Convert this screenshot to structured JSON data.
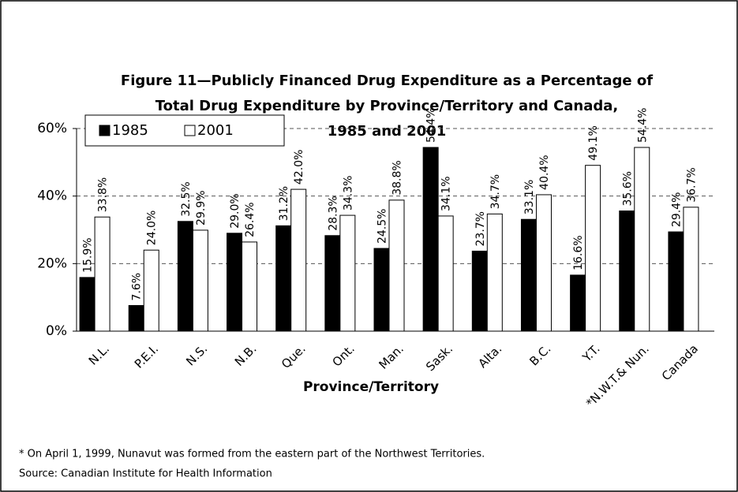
{
  "chart_data": {
    "type": "bar",
    "title": [
      "Figure 11—Publicly Financed Drug Expenditure as a Percentage of",
      "Total Drug Expenditure by Province/Territory and Canada,",
      "1985 and 2001"
    ],
    "x_label": "Province/Territory",
    "categories": [
      "N.L.",
      "P.E.I.",
      "N.S.",
      "N.B.",
      "Que.",
      "Ont.",
      "Man.",
      "Sask.",
      "Alta.",
      "B.C.",
      "Y.T.",
      "*N.W.T.& Nun.",
      "Canada"
    ],
    "series": [
      {
        "name": "1985",
        "color": "#000000",
        "values": [
          15.9,
          7.6,
          32.5,
          29.0,
          31.2,
          28.3,
          24.5,
          54.4,
          23.7,
          33.1,
          16.6,
          35.6,
          29.4
        ],
        "value_labels": [
          "15.9%",
          "7.6%",
          "32.5%",
          "29.0%",
          "31.2%",
          "28.3%",
          "24.5%",
          "54.4%",
          "23.7%",
          "33.1%",
          "16.6%",
          "35.6%",
          "29.4%"
        ]
      },
      {
        "name": "2001",
        "color": "#ffffff",
        "values": [
          33.8,
          24.0,
          29.9,
          26.4,
          42.0,
          34.3,
          38.8,
          34.1,
          34.7,
          40.4,
          49.1,
          54.4,
          36.7
        ],
        "value_labels": [
          "33.8%",
          "24.0%",
          "29.9%",
          "26.4%",
          "42.0%",
          "34.3%",
          "38.8%",
          "34.1%",
          "34.7%",
          "40.4%",
          "49.1%",
          "54.4%",
          "36.7%"
        ]
      }
    ],
    "ylim": [
      0,
      60
    ],
    "yticks": [
      {
        "value": 0,
        "label": "0%"
      },
      {
        "value": 20,
        "label": "20%"
      },
      {
        "value": 40,
        "label": "40%"
      },
      {
        "value": 60,
        "label": "60%"
      }
    ],
    "grid": true,
    "legend": "top-left",
    "footnotes": [
      "* On April 1, 1999, Nunavut was formed from the eastern part of the Northwest Territories.",
      "Source: Canadian Institute for Health Information"
    ]
  }
}
